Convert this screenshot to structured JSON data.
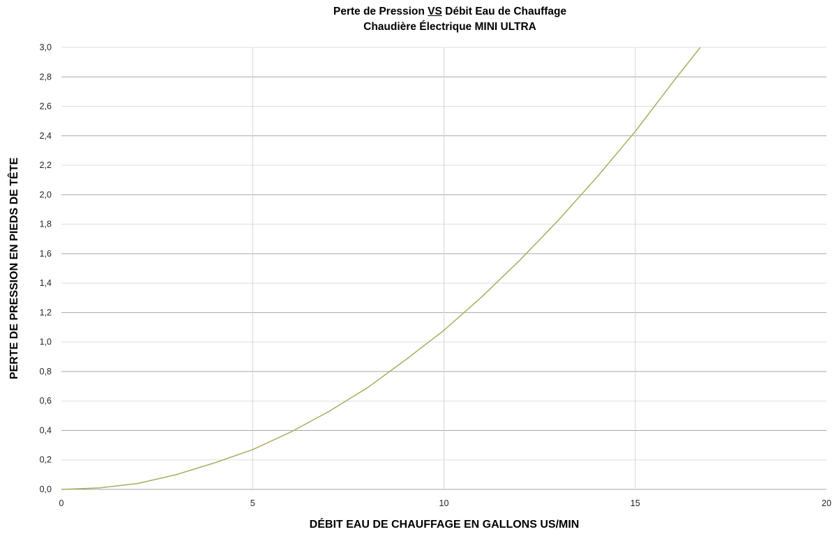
{
  "chart_data": {
    "type": "line",
    "title_parts": [
      "Perte de Pression ",
      "VS",
      " Débit Eau de Chauffage"
    ],
    "subtitle": "Chaudière Électrique MINI ULTRA",
    "xlabel": "DÉBIT EAU DE CHAUFFAGE EN GALLONS US/MIN",
    "ylabel": "PERTE DE PRESSION EN PIEDS DE TÊTE",
    "xlim": [
      0,
      20
    ],
    "ylim": [
      0,
      3.0
    ],
    "x_ticks": [
      0,
      5,
      10,
      15,
      20
    ],
    "x_tick_labels": [
      "0",
      "5",
      "10",
      "15",
      "20"
    ],
    "y_ticks": [
      0,
      0.2,
      0.4,
      0.6,
      0.8,
      1.0,
      1.2,
      1.4,
      1.6,
      1.8,
      2.0,
      2.2,
      2.4,
      2.6,
      2.8,
      3.0
    ],
    "y_tick_labels": [
      "0,0",
      "0,2",
      "0,4",
      "0,6",
      "0,8",
      "1,0",
      "1,2",
      "1,4",
      "1,6",
      "1,8",
      "2,0",
      "2,2",
      "2,4",
      "2,6",
      "2,8",
      "3,0"
    ],
    "grid": true,
    "series": [
      {
        "color": "#a8ad5c",
        "x": [
          0,
          1,
          2,
          3,
          4,
          5,
          6,
          7,
          8,
          9,
          10,
          11,
          12,
          13,
          14,
          15,
          16,
          16.7
        ],
        "values": [
          0,
          0.01,
          0.04,
          0.1,
          0.18,
          0.27,
          0.39,
          0.53,
          0.69,
          0.88,
          1.08,
          1.31,
          1.56,
          1.83,
          2.12,
          2.43,
          2.77,
          3.0
        ]
      }
    ]
  }
}
